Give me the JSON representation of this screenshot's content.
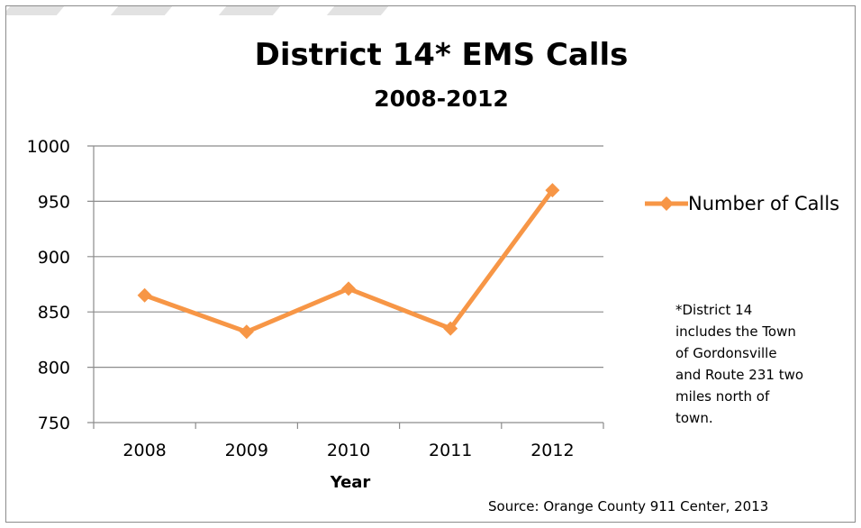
{
  "chart_data": {
    "type": "line",
    "title": "District 14* EMS Calls",
    "subtitle": "2008-2012",
    "xlabel": "Year",
    "ylabel": "",
    "categories": [
      "2008",
      "2009",
      "2010",
      "2011",
      "2012"
    ],
    "series": [
      {
        "name": "Number of Calls",
        "values": [
          865,
          832,
          871,
          835,
          960
        ],
        "color": "#f79646",
        "marker": "diamond"
      }
    ],
    "ylim": [
      750,
      1000
    ],
    "yticks": [
      "750",
      "800",
      "850",
      "900",
      "950",
      "1000"
    ],
    "grid": true,
    "legend_position": "right",
    "annotation": [
      "*District 14",
      "includes the Town",
      "of Gordonsville",
      "and Route 231 two",
      "miles north of",
      "town."
    ],
    "source": "Source: Orange County 911 Center, 2013"
  }
}
